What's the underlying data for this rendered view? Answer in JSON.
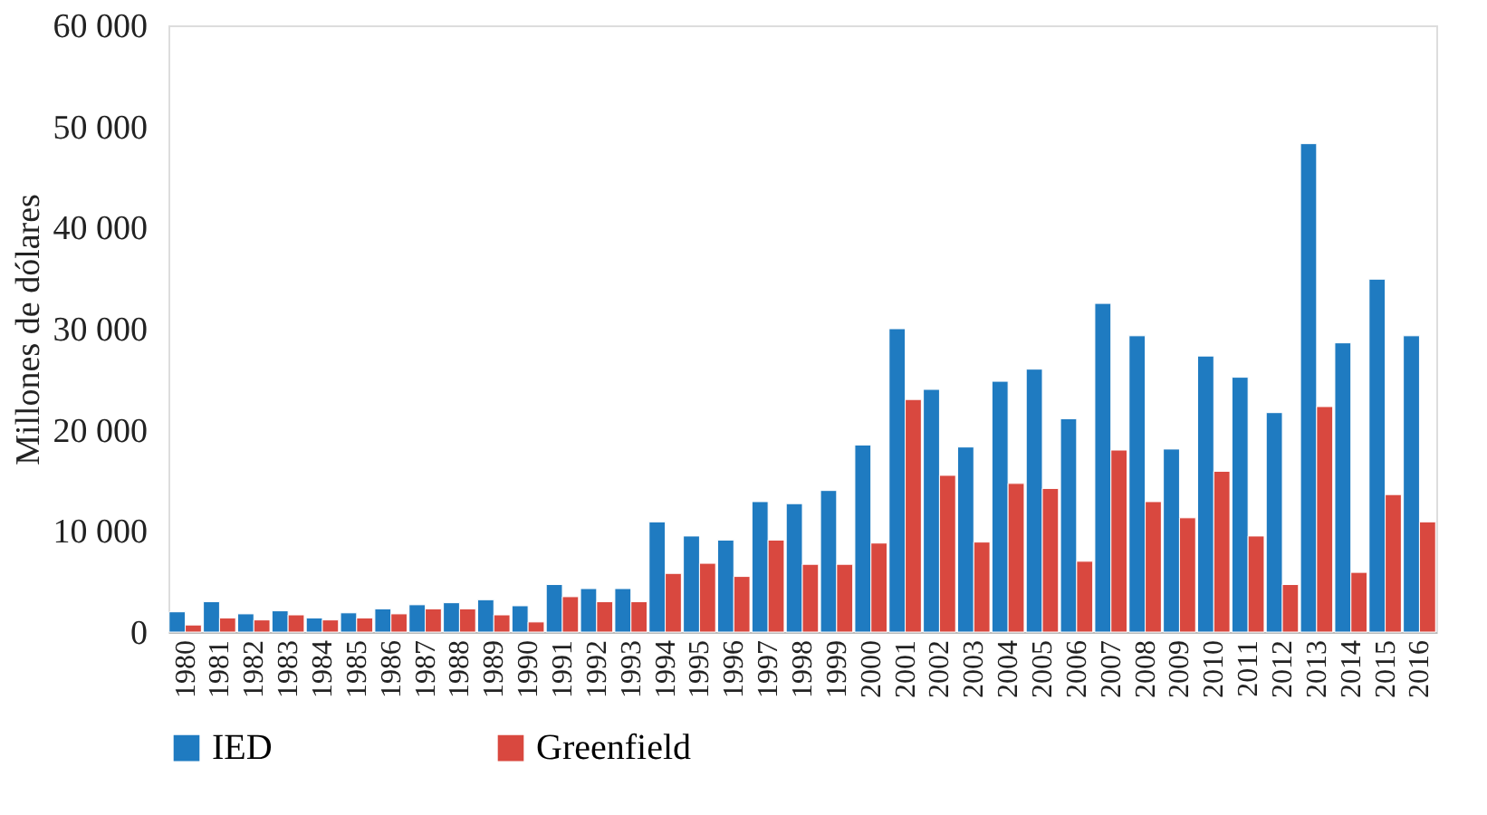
{
  "chart_data": {
    "type": "bar",
    "ylabel": "Millones de dólares",
    "categories": [
      "1980",
      "1981",
      "1982",
      "1983",
      "1984",
      "1985",
      "1986",
      "1987",
      "1988",
      "1989",
      "1990",
      "1991",
      "1992",
      "1993",
      "1994",
      "1995",
      "1996",
      "1997",
      "1998",
      "1999",
      "2000",
      "2001",
      "2002",
      "2003",
      "2004",
      "2005",
      "2006",
      "2007",
      "2008",
      "2009",
      "2010",
      "2011",
      "2012",
      "2013",
      "2014",
      "2015",
      "2016"
    ],
    "series": [
      {
        "name": "IED",
        "color": "#1f7bc1",
        "values": [
          2000,
          3000,
          1800,
          2100,
          1400,
          1900,
          2300,
          2700,
          2900,
          3200,
          2600,
          4700,
          4300,
          4300,
          10900,
          9500,
          9100,
          12900,
          12700,
          14000,
          18500,
          30000,
          24000,
          18300,
          24800,
          26000,
          21100,
          32500,
          29300,
          18100,
          27300,
          25200,
          21700,
          48300,
          28600,
          34900,
          29300
        ]
      },
      {
        "name": "Greenfield",
        "color": "#d9483f",
        "values": [
          700,
          1400,
          1200,
          1700,
          1200,
          1400,
          1800,
          2300,
          2300,
          1700,
          1000,
          3500,
          3000,
          3000,
          5800,
          6800,
          5500,
          9100,
          6700,
          6700,
          8800,
          23000,
          15500,
          8900,
          14700,
          14200,
          7000,
          18000,
          12900,
          11300,
          15900,
          9500,
          4700,
          22300,
          5900,
          13600,
          10900
        ]
      }
    ],
    "ylim": [
      0,
      60000
    ],
    "yticks": [
      0,
      {
        "value": 10000,
        "label": "10 000"
      },
      {
        "value": 20000,
        "label": "20 000"
      },
      {
        "value": 30000,
        "label": "30 000"
      },
      {
        "value": 40000,
        "label": "40 000"
      },
      {
        "value": 50000,
        "label": "50 000"
      },
      {
        "value": 60000,
        "label": "60 000"
      }
    ],
    "grid": false,
    "legend": "bottom"
  }
}
